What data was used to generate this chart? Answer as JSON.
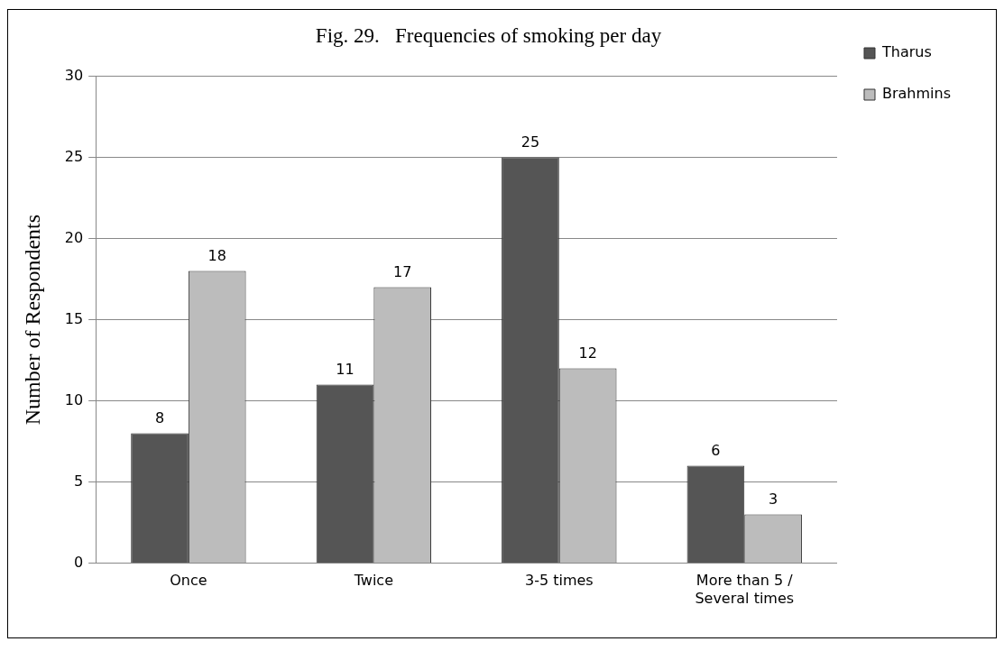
{
  "chart_data": {
    "type": "bar",
    "title": "Fig. 29.   Frequencies of smoking per day",
    "ylabel": "Number of Respondents",
    "categories": [
      "Once",
      "Twice",
      "3-5 times",
      "More than 5 / Several times"
    ],
    "series": [
      {
        "name": "Tharus",
        "color": "#555555",
        "values": [
          8,
          11,
          25,
          6
        ]
      },
      {
        "name": "Brahmins",
        "color": "#bcbcbc",
        "values": [
          18,
          17,
          12,
          3
        ]
      }
    ],
    "ylim": [
      0,
      30
    ],
    "yticks": [
      0,
      5,
      10,
      15,
      20,
      25,
      30
    ],
    "grid": "y",
    "legend": "top right",
    "data_labels": true
  }
}
